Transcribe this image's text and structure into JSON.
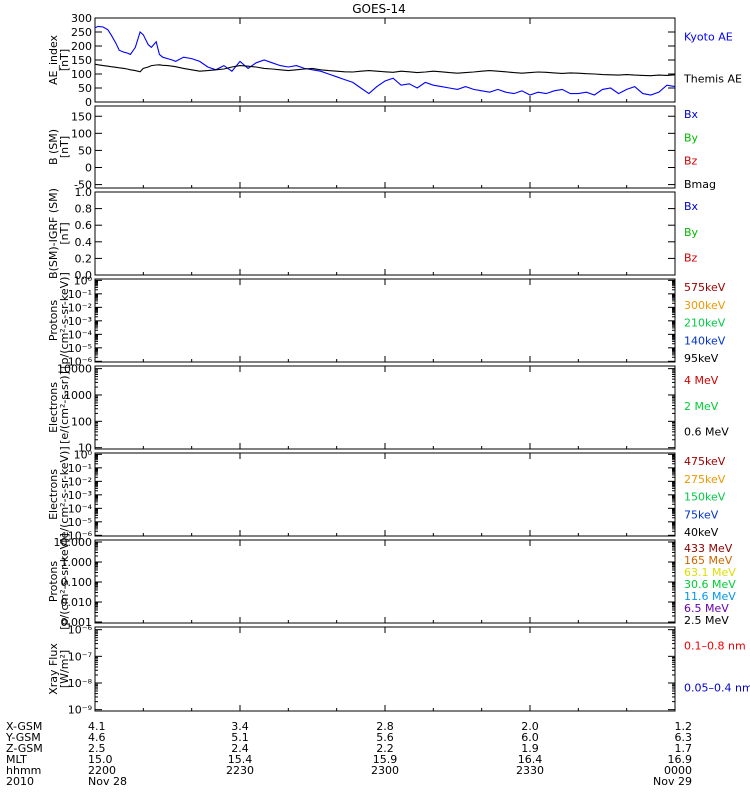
{
  "title": "GOES-14",
  "chart_data": [
    {
      "type": "line",
      "ylabel": [
        "AE_index",
        "[nT]"
      ],
      "ylim": [
        0,
        300
      ],
      "y_ticks": [
        "0",
        "50",
        "100",
        "150",
        "200",
        "250",
        "300"
      ],
      "x": [
        0,
        2,
        5,
        8,
        10,
        13,
        15,
        18,
        20,
        22,
        25,
        28,
        30,
        33,
        35,
        38,
        40,
        42,
        45,
        48,
        50,
        55,
        60,
        65,
        70,
        75,
        80,
        85,
        90,
        95,
        100,
        105,
        110,
        115,
        120,
        125,
        130,
        135,
        140,
        145,
        150,
        155,
        160,
        165,
        170,
        175,
        180,
        185,
        190,
        195,
        200,
        205,
        210,
        215,
        220,
        225,
        230,
        235,
        240,
        245,
        250,
        255,
        260,
        265,
        270,
        275,
        280,
        285,
        290,
        295,
        300,
        305,
        310,
        315,
        320,
        325,
        330,
        335,
        340,
        345,
        350,
        355,
        360
      ],
      "series": [
        {
          "name": "Kyoto AE",
          "color": "#0000ff",
          "values": [
            265,
            270,
            268,
            258,
            240,
            210,
            185,
            178,
            175,
            170,
            195,
            250,
            240,
            205,
            195,
            215,
            170,
            160,
            155,
            150,
            145,
            160,
            155,
            145,
            125,
            115,
            130,
            110,
            145,
            120,
            140,
            150,
            140,
            130,
            125,
            130,
            120,
            115,
            110,
            100,
            90,
            80,
            70,
            50,
            30,
            55,
            75,
            85,
            60,
            65,
            50,
            70,
            60,
            55,
            50,
            45,
            55,
            45,
            40,
            35,
            45,
            35,
            30,
            40,
            25,
            35,
            30,
            40,
            45,
            30,
            30,
            35,
            25,
            45,
            50,
            30,
            45,
            55,
            30,
            25,
            35,
            60,
            55
          ]
        },
        {
          "name": "Themis AE",
          "color": "#000000",
          "values": [
            135,
            133,
            130,
            128,
            126,
            124,
            122,
            120,
            118,
            115,
            112,
            108,
            120,
            125,
            130,
            132,
            133,
            131,
            130,
            128,
            126,
            120,
            115,
            110,
            112,
            115,
            118,
            125,
            130,
            128,
            125,
            120,
            118,
            115,
            112,
            115,
            118,
            120,
            115,
            112,
            110,
            108,
            107,
            110,
            112,
            110,
            108,
            106,
            110,
            108,
            105,
            107,
            110,
            108,
            105,
            103,
            105,
            107,
            110,
            112,
            110,
            108,
            105,
            103,
            105,
            107,
            106,
            104,
            102,
            104,
            103,
            101,
            100,
            98,
            97,
            96,
            98,
            96,
            95,
            94,
            96,
            95,
            97
          ]
        }
      ],
      "legend": [
        {
          "label": "Kyoto AE",
          "color": "#0000ff"
        },
        {
          "label": "Themis AE",
          "color": "#000000"
        }
      ]
    },
    {
      "type": "line",
      "ylabel": [
        "B (SM)",
        "[nT]"
      ],
      "ylim": [
        -60,
        180
      ],
      "y_ticks": [
        "-50",
        "0",
        "50",
        "100",
        "150"
      ],
      "series": [],
      "legend": [
        {
          "label": "Bx",
          "color": "#0000cc"
        },
        {
          "label": "By",
          "color": "#00bb00"
        },
        {
          "label": "Bz",
          "color": "#cc0000"
        },
        {
          "label": "Bmag",
          "color": "#000000"
        }
      ]
    },
    {
      "type": "line",
      "ylabel": [
        "B(SM)-IGRF (SM)",
        "[nT]"
      ],
      "ylim": [
        0,
        1
      ],
      "y_ticks": [
        "0.0",
        "0.2",
        "0.4",
        "0.6",
        "0.8",
        "1.0"
      ],
      "series": [],
      "legend": [
        {
          "label": "Bx",
          "color": "#0000cc"
        },
        {
          "label": "By",
          "color": "#00bb00"
        },
        {
          "label": "Bz",
          "color": "#cc0000"
        }
      ]
    },
    {
      "type": "line",
      "scale": "log",
      "ylabel": [
        "Protons",
        "[p/(cm²-s-sr-keV)]"
      ],
      "y_ticks": [
        "10⁻⁶",
        "10⁻⁵",
        "10⁻⁴",
        "10⁻³",
        "10⁻²",
        "10⁻¹",
        "10⁰"
      ],
      "series": [],
      "legend": [
        {
          "label": "575keV",
          "color": "#990000"
        },
        {
          "label": "300keV",
          "color": "#ee9900"
        },
        {
          "label": "210keV",
          "color": "#00cc44"
        },
        {
          "label": "140keV",
          "color": "#0033cc"
        },
        {
          "label": "95keV",
          "color": "#000000"
        }
      ]
    },
    {
      "type": "line",
      "scale": "log",
      "ylabel": [
        "Electrons",
        "[e/(cm²-s-sr)]"
      ],
      "y_ticks": [
        "10",
        "100",
        "1000",
        "10000"
      ],
      "series": [],
      "legend": [
        {
          "label": "4 MeV",
          "color": "#cc0000"
        },
        {
          "label": "2 MeV",
          "color": "#00cc33"
        },
        {
          "label": "0.6 MeV",
          "color": "#000000"
        }
      ]
    },
    {
      "type": "line",
      "scale": "log",
      "ylabel": [
        "Electrons",
        "[e/(cm²-s-sr-keV)]"
      ],
      "y_ticks": [
        "10⁻⁶",
        "10⁻⁵",
        "10⁻⁴",
        "10⁻³",
        "10⁻²",
        "10⁻¹",
        "10⁰"
      ],
      "series": [],
      "legend": [
        {
          "label": "475keV",
          "color": "#990000"
        },
        {
          "label": "275keV",
          "color": "#ee9900"
        },
        {
          "label": "150keV",
          "color": "#00cc44"
        },
        {
          "label": "75keV",
          "color": "#0033cc"
        },
        {
          "label": "40keV",
          "color": "#000000"
        }
      ]
    },
    {
      "type": "line",
      "scale": "log",
      "ylabel": [
        "Protons",
        "[p/(cm²-s-sr-keV)]"
      ],
      "y_ticks": [
        "0.001",
        "0.010",
        "0.100",
        "1.000",
        "10.000"
      ],
      "series": [],
      "legend": [
        {
          "label": "433 MeV",
          "color": "#880000"
        },
        {
          "label": "165 MeV",
          "color": "#cc6600"
        },
        {
          "label": "63.1 MeV",
          "color": "#dddd00"
        },
        {
          "label": "30.6 MeV",
          "color": "#00cc33"
        },
        {
          "label": "11.6 MeV",
          "color": "#0099ee"
        },
        {
          "label": "6.5 MeV",
          "color": "#6600aa"
        },
        {
          "label": "2.5 MeV",
          "color": "#000000"
        }
      ]
    },
    {
      "type": "line",
      "scale": "log",
      "ylabel": [
        "Xray Flux",
        "[W/m²]"
      ],
      "y_ticks": [
        "10⁻⁹",
        "10⁻⁸",
        "10⁻⁷",
        "10⁻⁶"
      ],
      "series": [],
      "legend": [
        {
          "label": "0.1–0.8 nm",
          "color": "#ee0000"
        },
        {
          "label": "0.05–0.4 nm",
          "color": "#0000cc"
        }
      ]
    }
  ],
  "x_axis": {
    "xlim": [
      0,
      360
    ],
    "tick_positions": [
      0,
      90,
      180,
      270,
      360
    ],
    "row_labels": [
      "X-GSM",
      "Y-GSM",
      "Z-GSM",
      "MLT",
      "hhmm",
      "2010"
    ],
    "rows": [
      [
        "4.1",
        "3.4",
        "2.8",
        "2.0",
        "1.2"
      ],
      [
        "4.6",
        "5.1",
        "5.6",
        "6.0",
        "6.3"
      ],
      [
        "2.5",
        "2.4",
        "2.2",
        "1.9",
        "1.7"
      ],
      [
        "15.0",
        "15.4",
        "15.9",
        "16.4",
        "16.9"
      ],
      [
        "2200",
        "2230",
        "2300",
        "2330",
        "0000"
      ],
      [
        "Nov 28",
        "",
        "",
        "",
        "Nov 29"
      ]
    ]
  }
}
